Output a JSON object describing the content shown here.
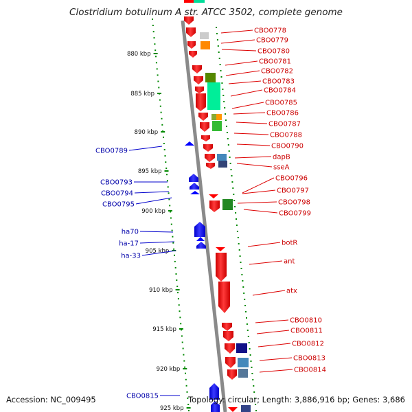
{
  "title": "Clostridium botulinum A str. ATCC 3502, complete genome",
  "footer": {
    "accession": "Accession: NC_009495",
    "topology": "Topology: circular; Length: 3,886,916 bp; Genes: 3,686"
  },
  "scale_ticks": [
    "880 kbp",
    "885 kbp",
    "890 kbp",
    "895 kbp",
    "900 kbp",
    "905 kbp",
    "910 kbp",
    "915 kbp",
    "920 kbp",
    "925 kbp"
  ],
  "forward_labels": [
    "CBO0778",
    "CBO0779",
    "CBO0780",
    "CBO0781",
    "CBO0782",
    "CBO0783",
    "CBO0784",
    "CBO0785",
    "CBO0786",
    "CBO0787",
    "CBO0788",
    "CBO0790",
    "dapB",
    "sseA",
    "CBO0796",
    "CBO0797",
    "CBO0798",
    "CBO0799",
    "botR",
    "ant",
    "atx",
    "CBO0810",
    "CBO0811",
    "CBO0812",
    "CBO0813",
    "CBO0814"
  ],
  "reverse_labels": [
    "CBO0789",
    "CBO0793",
    "CBO0794",
    "CBO0795",
    "ha70",
    "ha-17",
    "ha-33",
    "CBO0815"
  ],
  "colors": {
    "forward_gene": "#ff0000",
    "reverse_gene": "#0000ff",
    "forward_label": "#cc0000",
    "reverse_label": "#0000aa",
    "backbone": "#8a8a8a",
    "dots": "#008800"
  }
}
